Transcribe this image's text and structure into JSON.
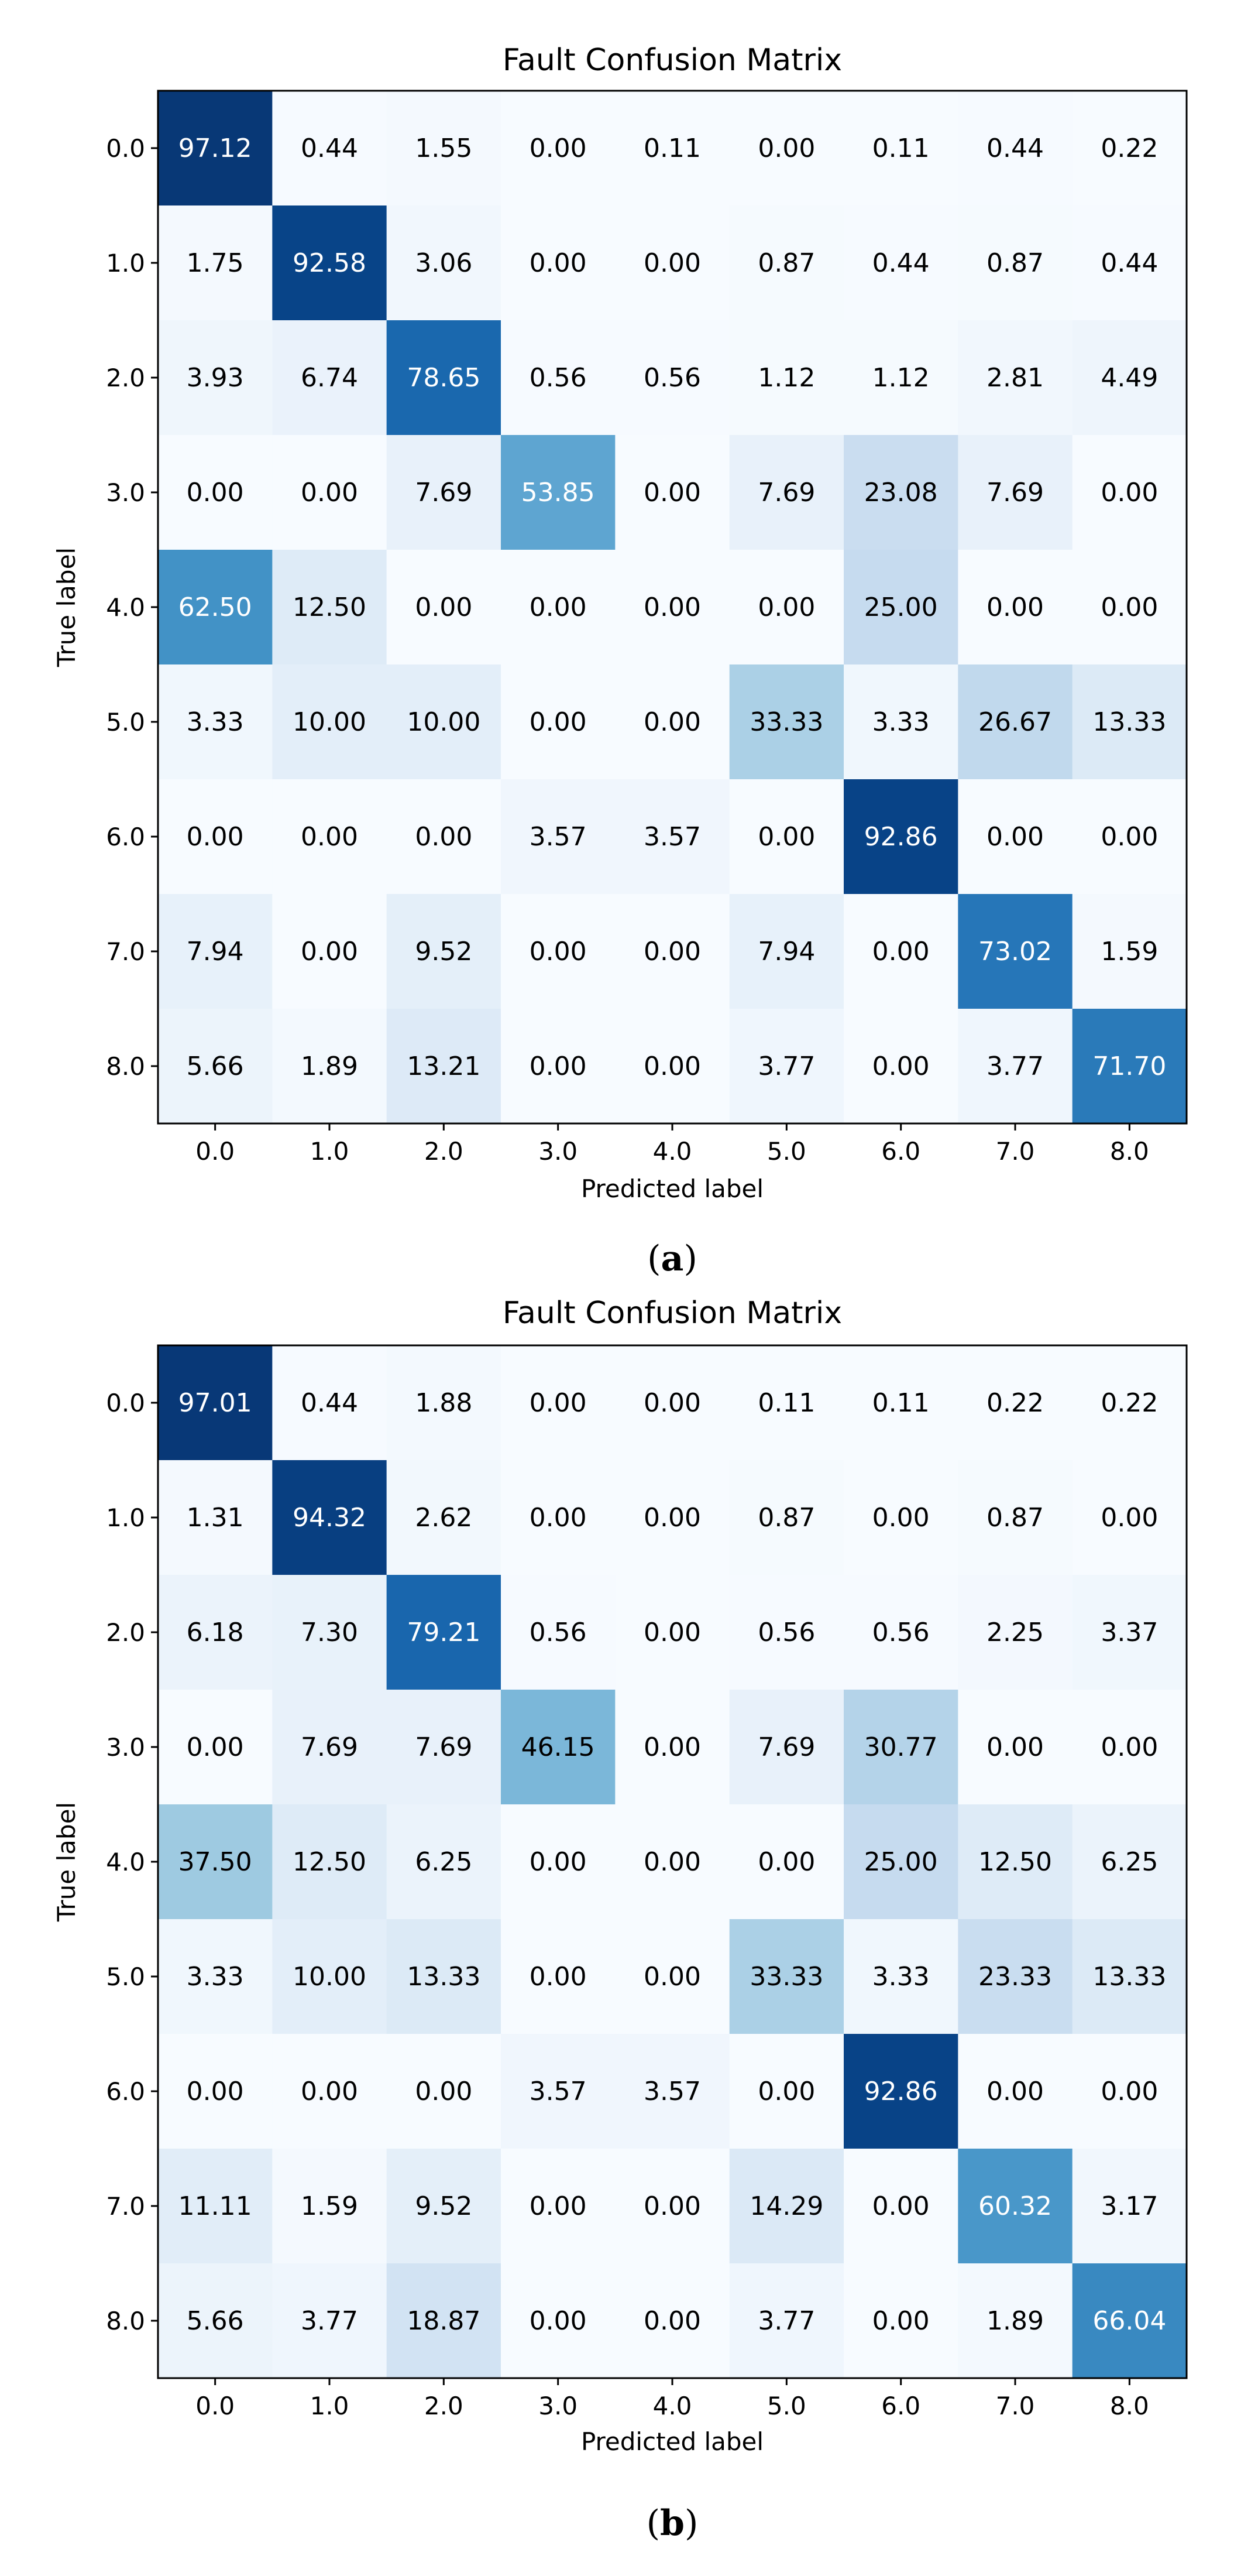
{
  "chart_data": [
    {
      "type": "heatmap",
      "caption": "a",
      "title": "Fault Confusion Matrix",
      "xlabel": "Predicted label",
      "ylabel": "True label",
      "x_ticks": [
        "0.0",
        "1.0",
        "2.0",
        "3.0",
        "4.0",
        "5.0",
        "6.0",
        "7.0",
        "8.0"
      ],
      "y_ticks": [
        "0.0",
        "1.0",
        "2.0",
        "3.0",
        "4.0",
        "5.0",
        "6.0",
        "7.0",
        "8.0"
      ],
      "value_range": [
        0,
        100
      ],
      "colormap": "Blues",
      "matrix": [
        [
          "97.12",
          "0.44",
          "1.55",
          "0.00",
          "0.11",
          "0.00",
          "0.11",
          "0.44",
          "0.22"
        ],
        [
          "1.75",
          "92.58",
          "3.06",
          "0.00",
          "0.00",
          "0.87",
          "0.44",
          "0.87",
          "0.44"
        ],
        [
          "3.93",
          "6.74",
          "78.65",
          "0.56",
          "0.56",
          "1.12",
          "1.12",
          "2.81",
          "4.49"
        ],
        [
          "0.00",
          "0.00",
          "7.69",
          "53.85",
          "0.00",
          "7.69",
          "23.08",
          "7.69",
          "0.00"
        ],
        [
          "62.50",
          "12.50",
          "0.00",
          "0.00",
          "0.00",
          "0.00",
          "25.00",
          "0.00",
          "0.00"
        ],
        [
          "3.33",
          "10.00",
          "10.00",
          "0.00",
          "0.00",
          "33.33",
          "3.33",
          "26.67",
          "13.33"
        ],
        [
          "0.00",
          "0.00",
          "0.00",
          "3.57",
          "3.57",
          "0.00",
          "92.86",
          "0.00",
          "0.00"
        ],
        [
          "7.94",
          "0.00",
          "9.52",
          "0.00",
          "0.00",
          "7.94",
          "0.00",
          "73.02",
          "1.59"
        ],
        [
          "5.66",
          "1.89",
          "13.21",
          "0.00",
          "0.00",
          "3.77",
          "0.00",
          "3.77",
          "71.70"
        ]
      ]
    },
    {
      "type": "heatmap",
      "caption": "b",
      "title": "Fault Confusion Matrix",
      "xlabel": "Predicted label",
      "ylabel": "True label",
      "x_ticks": [
        "0.0",
        "1.0",
        "2.0",
        "3.0",
        "4.0",
        "5.0",
        "6.0",
        "7.0",
        "8.0"
      ],
      "y_ticks": [
        "0.0",
        "1.0",
        "2.0",
        "3.0",
        "4.0",
        "5.0",
        "6.0",
        "7.0",
        "8.0"
      ],
      "value_range": [
        0,
        100
      ],
      "colormap": "Blues",
      "matrix": [
        [
          "97.01",
          "0.44",
          "1.88",
          "0.00",
          "0.00",
          "0.11",
          "0.11",
          "0.22",
          "0.22"
        ],
        [
          "1.31",
          "94.32",
          "2.62",
          "0.00",
          "0.00",
          "0.87",
          "0.00",
          "0.87",
          "0.00"
        ],
        [
          "6.18",
          "7.30",
          "79.21",
          "0.56",
          "0.00",
          "0.56",
          "0.56",
          "2.25",
          "3.37"
        ],
        [
          "0.00",
          "7.69",
          "7.69",
          "46.15",
          "0.00",
          "7.69",
          "30.77",
          "0.00",
          "0.00"
        ],
        [
          "37.50",
          "12.50",
          "6.25",
          "0.00",
          "0.00",
          "0.00",
          "25.00",
          "12.50",
          "6.25"
        ],
        [
          "3.33",
          "10.00",
          "13.33",
          "0.00",
          "0.00",
          "33.33",
          "3.33",
          "23.33",
          "13.33"
        ],
        [
          "0.00",
          "0.00",
          "0.00",
          "3.57",
          "3.57",
          "0.00",
          "92.86",
          "0.00",
          "0.00"
        ],
        [
          "11.11",
          "1.59",
          "9.52",
          "0.00",
          "0.00",
          "14.29",
          "0.00",
          "60.32",
          "3.17"
        ],
        [
          "5.66",
          "3.77",
          "18.87",
          "0.00",
          "0.00",
          "3.77",
          "0.00",
          "1.89",
          "66.04"
        ]
      ]
    }
  ]
}
